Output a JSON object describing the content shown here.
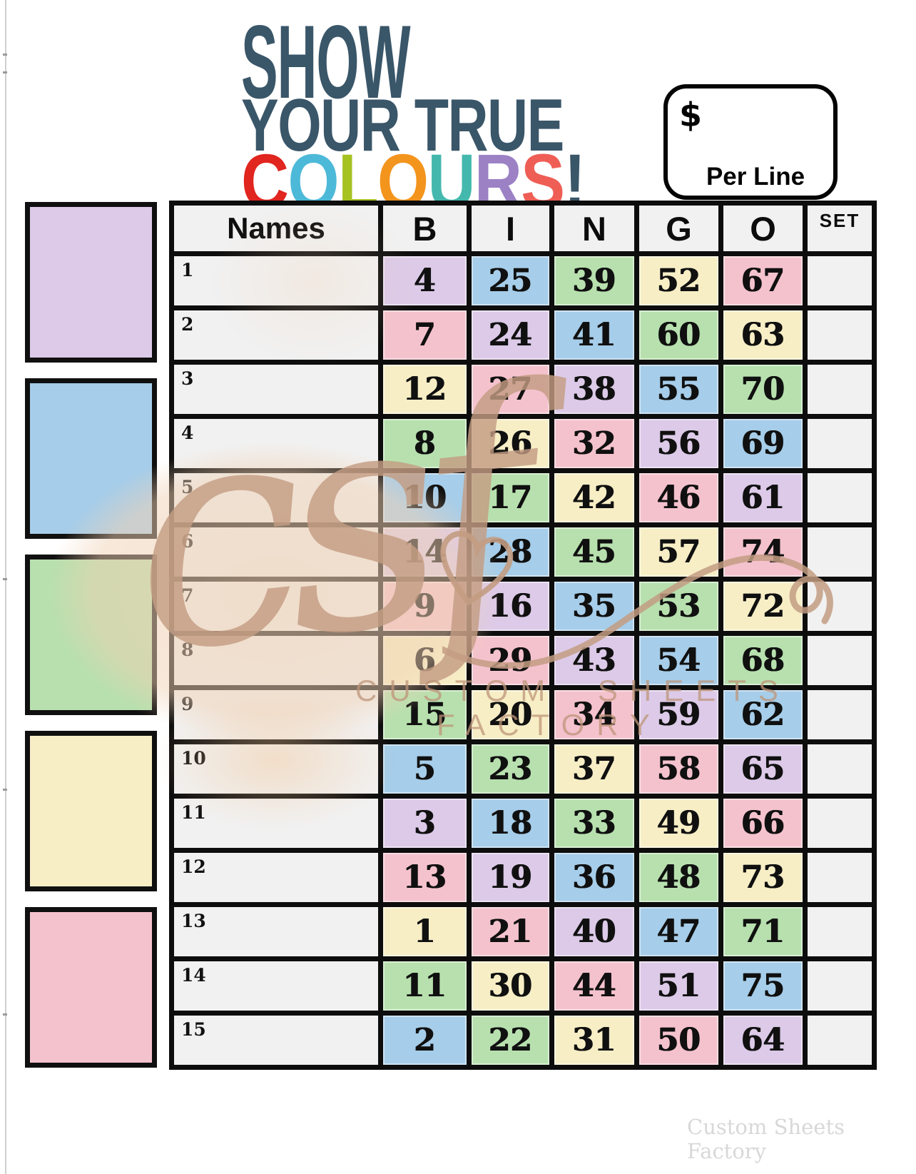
{
  "title": {
    "line1": "SHOW",
    "line2": "YOUR TRUE",
    "line3_letters": [
      {
        "ch": "C",
        "color": "#e1251f"
      },
      {
        "ch": "O",
        "color": "#4db9d8"
      },
      {
        "ch": "L",
        "color": "#a5c221"
      },
      {
        "ch": "O",
        "color": "#f3941d"
      },
      {
        "ch": "U",
        "color": "#45b8ad"
      },
      {
        "ch": "R",
        "color": "#9c81c5"
      },
      {
        "ch": "S",
        "color": "#ef5e55"
      },
      {
        "ch": "!",
        "color": "#3a5669"
      }
    ]
  },
  "price_box": {
    "currency": "$",
    "label": "Per Line"
  },
  "palette": {
    "purple": "#dccae8",
    "blue": "#a6cde9",
    "green": "#b7e0ae",
    "yellow": "#f7eec6",
    "pink": "#f4c2cd"
  },
  "sidebar_swatches": [
    "purple",
    "blue",
    "green",
    "yellow",
    "pink"
  ],
  "table": {
    "headers": {
      "names": "Names",
      "b": "B",
      "i": "I",
      "n": "N",
      "g": "G",
      "o": "O",
      "set": "SET"
    },
    "rows": [
      {
        "index": "1",
        "cells": [
          {
            "v": "4",
            "c": "purple"
          },
          {
            "v": "25",
            "c": "blue"
          },
          {
            "v": "39",
            "c": "green"
          },
          {
            "v": "52",
            "c": "yellow"
          },
          {
            "v": "67",
            "c": "pink"
          }
        ]
      },
      {
        "index": "2",
        "cells": [
          {
            "v": "7",
            "c": "pink"
          },
          {
            "v": "24",
            "c": "purple"
          },
          {
            "v": "41",
            "c": "blue"
          },
          {
            "v": "60",
            "c": "green"
          },
          {
            "v": "63",
            "c": "yellow"
          }
        ]
      },
      {
        "index": "3",
        "cells": [
          {
            "v": "12",
            "c": "yellow"
          },
          {
            "v": "27",
            "c": "pink"
          },
          {
            "v": "38",
            "c": "purple"
          },
          {
            "v": "55",
            "c": "blue"
          },
          {
            "v": "70",
            "c": "green"
          }
        ]
      },
      {
        "index": "4",
        "cells": [
          {
            "v": "8",
            "c": "green"
          },
          {
            "v": "26",
            "c": "yellow"
          },
          {
            "v": "32",
            "c": "pink"
          },
          {
            "v": "56",
            "c": "purple"
          },
          {
            "v": "69",
            "c": "blue"
          }
        ]
      },
      {
        "index": "5",
        "cells": [
          {
            "v": "10",
            "c": "blue"
          },
          {
            "v": "17",
            "c": "green"
          },
          {
            "v": "42",
            "c": "yellow"
          },
          {
            "v": "46",
            "c": "pink"
          },
          {
            "v": "61",
            "c": "purple"
          }
        ]
      },
      {
        "index": "6",
        "cells": [
          {
            "v": "14",
            "c": "purple"
          },
          {
            "v": "28",
            "c": "blue"
          },
          {
            "v": "45",
            "c": "green"
          },
          {
            "v": "57",
            "c": "yellow"
          },
          {
            "v": "74",
            "c": "pink"
          }
        ]
      },
      {
        "index": "7",
        "cells": [
          {
            "v": "9",
            "c": "pink"
          },
          {
            "v": "16",
            "c": "purple"
          },
          {
            "v": "35",
            "c": "blue"
          },
          {
            "v": "53",
            "c": "green"
          },
          {
            "v": "72",
            "c": "yellow"
          }
        ]
      },
      {
        "index": "8",
        "cells": [
          {
            "v": "6",
            "c": "yellow"
          },
          {
            "v": "29",
            "c": "pink"
          },
          {
            "v": "43",
            "c": "purple"
          },
          {
            "v": "54",
            "c": "blue"
          },
          {
            "v": "68",
            "c": "green"
          }
        ]
      },
      {
        "index": "9",
        "cells": [
          {
            "v": "15",
            "c": "green"
          },
          {
            "v": "20",
            "c": "yellow"
          },
          {
            "v": "34",
            "c": "pink"
          },
          {
            "v": "59",
            "c": "purple"
          },
          {
            "v": "62",
            "c": "blue"
          }
        ]
      },
      {
        "index": "10",
        "cells": [
          {
            "v": "5",
            "c": "blue"
          },
          {
            "v": "23",
            "c": "green"
          },
          {
            "v": "37",
            "c": "yellow"
          },
          {
            "v": "58",
            "c": "pink"
          },
          {
            "v": "65",
            "c": "purple"
          }
        ]
      },
      {
        "index": "11",
        "cells": [
          {
            "v": "3",
            "c": "purple"
          },
          {
            "v": "18",
            "c": "blue"
          },
          {
            "v": "33",
            "c": "green"
          },
          {
            "v": "49",
            "c": "yellow"
          },
          {
            "v": "66",
            "c": "pink"
          }
        ]
      },
      {
        "index": "12",
        "cells": [
          {
            "v": "13",
            "c": "pink"
          },
          {
            "v": "19",
            "c": "purple"
          },
          {
            "v": "36",
            "c": "blue"
          },
          {
            "v": "48",
            "c": "green"
          },
          {
            "v": "73",
            "c": "yellow"
          }
        ]
      },
      {
        "index": "13",
        "cells": [
          {
            "v": "1",
            "c": "yellow"
          },
          {
            "v": "21",
            "c": "pink"
          },
          {
            "v": "40",
            "c": "purple"
          },
          {
            "v": "47",
            "c": "blue"
          },
          {
            "v": "71",
            "c": "green"
          }
        ]
      },
      {
        "index": "14",
        "cells": [
          {
            "v": "11",
            "c": "green"
          },
          {
            "v": "30",
            "c": "yellow"
          },
          {
            "v": "44",
            "c": "pink"
          },
          {
            "v": "51",
            "c": "purple"
          },
          {
            "v": "75",
            "c": "blue"
          }
        ]
      },
      {
        "index": "15",
        "cells": [
          {
            "v": "2",
            "c": "blue"
          },
          {
            "v": "22",
            "c": "green"
          },
          {
            "v": "31",
            "c": "yellow"
          },
          {
            "v": "50",
            "c": "pink"
          },
          {
            "v": "64",
            "c": "purple"
          }
        ]
      }
    ]
  },
  "watermark": {
    "script": "csf",
    "line1": "CUSTOM SHEETS",
    "line2": "FACTORY"
  },
  "footer": "Custom Sheets Factory"
}
